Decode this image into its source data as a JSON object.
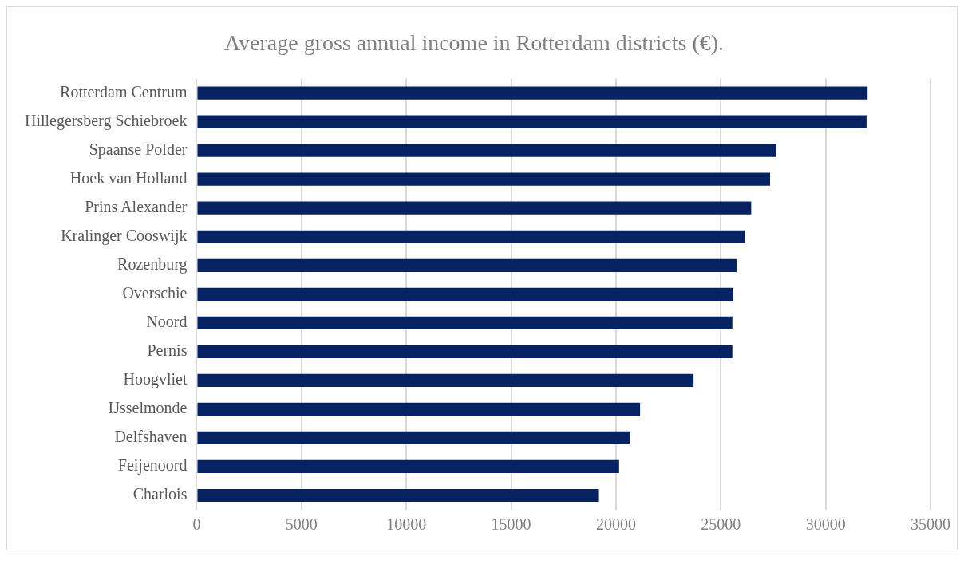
{
  "chart_data": {
    "type": "bar",
    "orientation": "horizontal",
    "title": "Average gross annual income in Rotterdam districts (€).",
    "categories": [
      "Rotterdam Centrum",
      "Hillegersberg Schiebroek",
      "Spaanse Polder",
      "Hoek van Holland",
      "Prins Alexander",
      "Kralinger Cooswijk",
      "Rozenburg",
      "Overschie",
      "Noord",
      "Pernis",
      "Hoogvliet",
      "IJsselmonde",
      "Delfshaven",
      "Feijenoord",
      "Charlois"
    ],
    "values": [
      32000,
      31950,
      27650,
      27350,
      26450,
      26150,
      25750,
      25600,
      25550,
      25550,
      23700,
      21150,
      20650,
      20150,
      19150
    ],
    "color": "#062261",
    "xlim": [
      0,
      35000
    ],
    "xticks": [
      0,
      5000,
      10000,
      15000,
      20000,
      25000,
      30000,
      35000
    ],
    "grid": "x",
    "legend": false
  }
}
